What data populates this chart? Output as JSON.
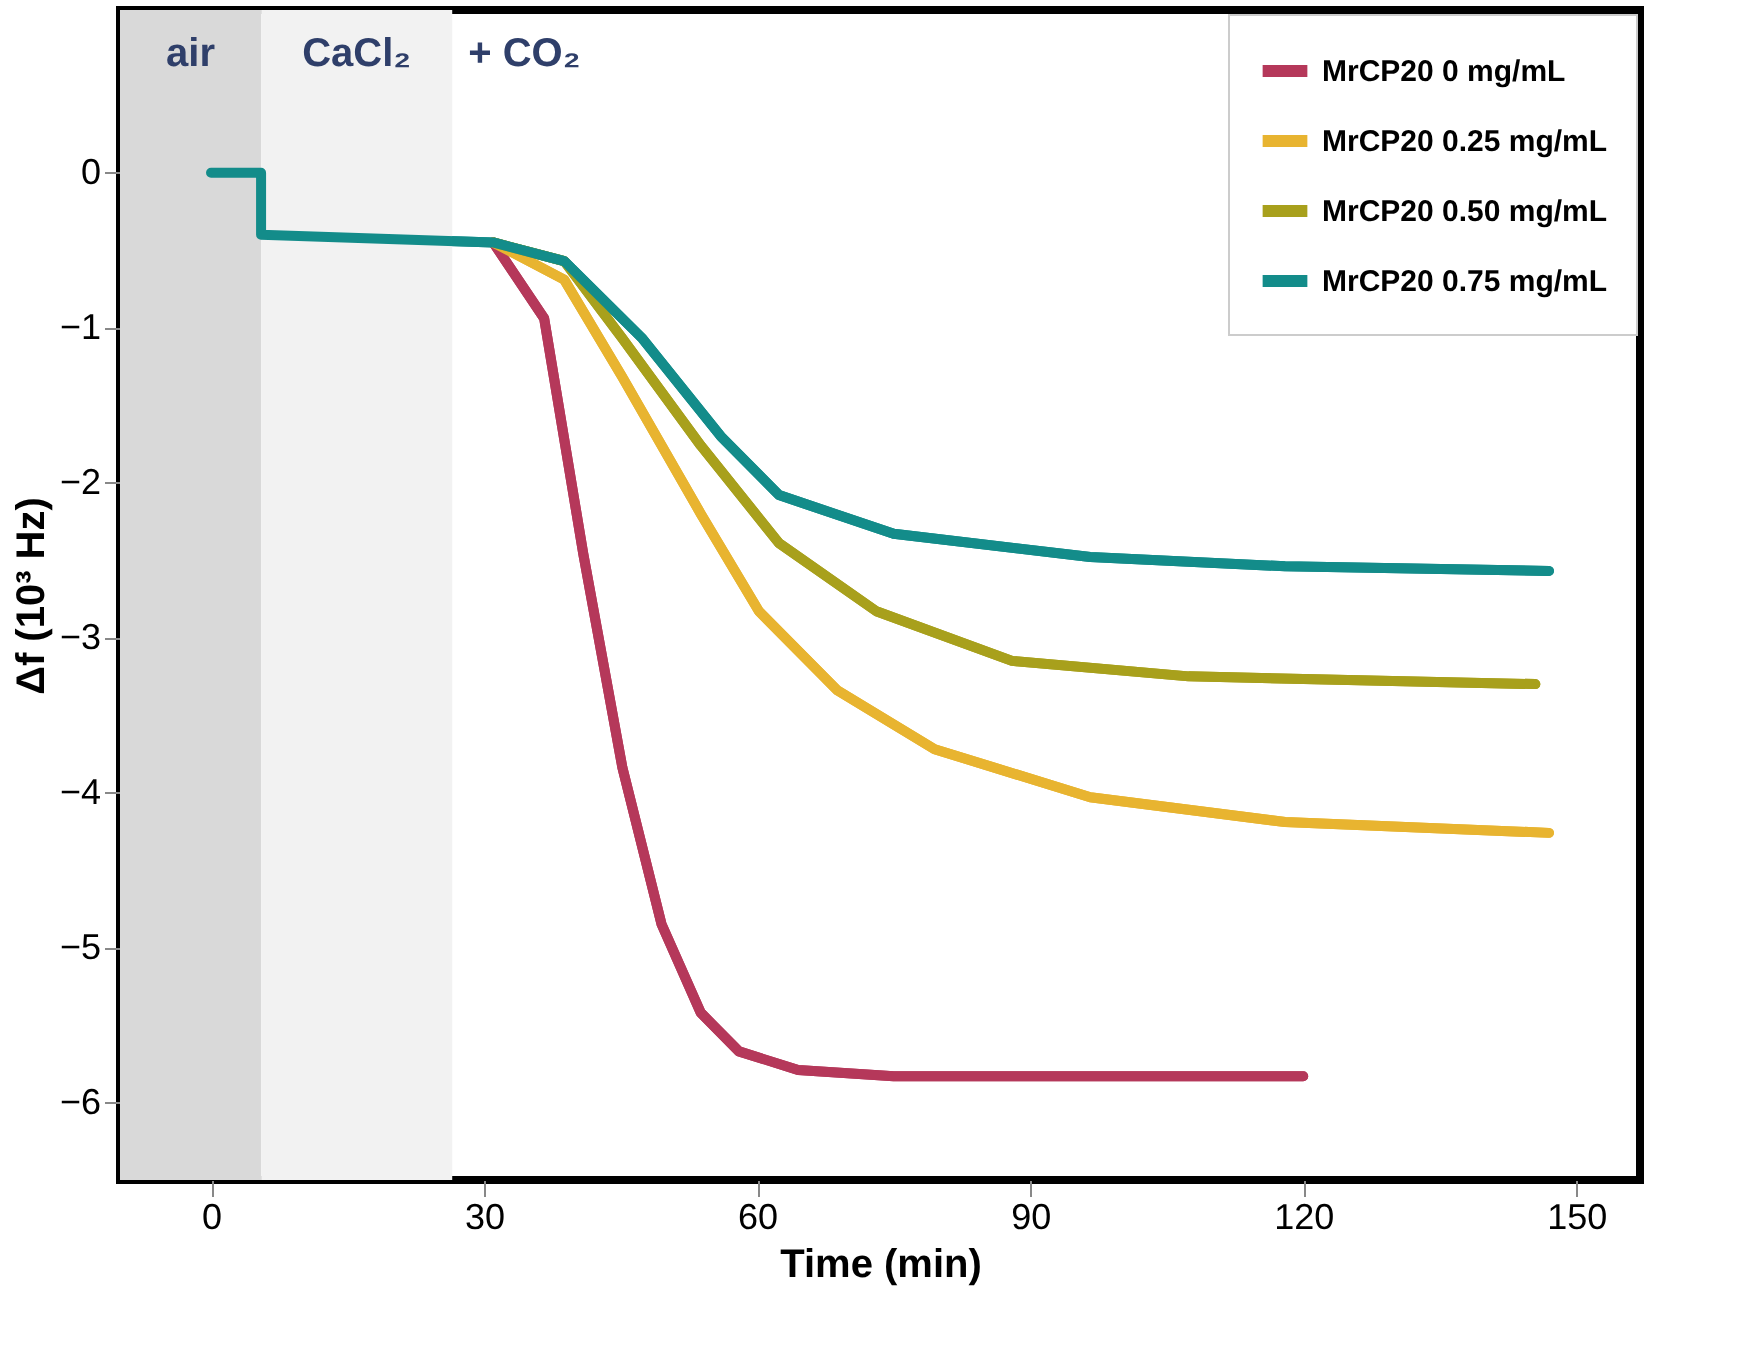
{
  "chart_data": {
    "type": "line",
    "xlabel": "Time (min)",
    "ylabel": "Δf (10³ Hz)",
    "xlim": [
      -10,
      157
    ],
    "xticks": [
      0,
      30,
      60,
      90,
      120,
      150
    ],
    "ylim": [
      -6.5,
      1.05
    ],
    "yticks": [
      0,
      -1,
      -2,
      -3,
      -4,
      -5,
      -6
    ],
    "legend": "top right",
    "grid": false,
    "marker": "none",
    "line_style": "solid",
    "bands": [
      {
        "axis": "x",
        "from": -10,
        "to": 5.5,
        "label": "air",
        "color": "#d9d9d9"
      },
      {
        "axis": "x",
        "from": 5.5,
        "to": 26.5,
        "label": "CaCl₂",
        "color": "#f2f2f2"
      }
    ],
    "annotations": [
      "+ CO₂"
    ],
    "series": [
      {
        "name": "MrCP20 0 mg/mL",
        "color": "#b5385a",
        "x": [
          31,
          36.6,
          40.9,
          45.2,
          49.5,
          53.8,
          58,
          64.5,
          75,
          120
        ],
        "values": [
          -0.45,
          -0.94,
          -2.46,
          -3.84,
          -4.85,
          -5.42,
          -5.67,
          -5.79,
          -5.83,
          -5.83
        ]
      },
      {
        "name": "MrCP20 0.25 mg/mL",
        "color": "#e8b430",
        "x": [
          31,
          38.8,
          45.2,
          53.8,
          60.2,
          68.8,
          79.5,
          96.6,
          118,
          147
        ],
        "values": [
          -0.45,
          -0.69,
          -1.32,
          -2.2,
          -2.83,
          -3.34,
          -3.72,
          -4.03,
          -4.19,
          -4.26
        ]
      },
      {
        "name": "MrCP20 0.50 mg/mL",
        "color": "#a8a01c",
        "x": [
          31,
          38.8,
          45.2,
          53.8,
          62.4,
          73.1,
          88,
          107.4,
          145.5
        ],
        "values": [
          -0.45,
          -0.57,
          -1.07,
          -1.76,
          -2.39,
          -2.83,
          -3.15,
          -3.25,
          -3.3
        ]
      },
      {
        "name": "MrCP20 0.75 mg/mL",
        "color": "#138c8a",
        "x": [
          0,
          5.5,
          5.5,
          31,
          38.8,
          47.4,
          56,
          62.4,
          75,
          96.6,
          118,
          147
        ],
        "values": [
          0,
          0,
          -0.4,
          -0.45,
          -0.57,
          -1.07,
          -1.7,
          -2.08,
          -2.33,
          -2.48,
          -2.54,
          -2.57
        ]
      }
    ]
  }
}
